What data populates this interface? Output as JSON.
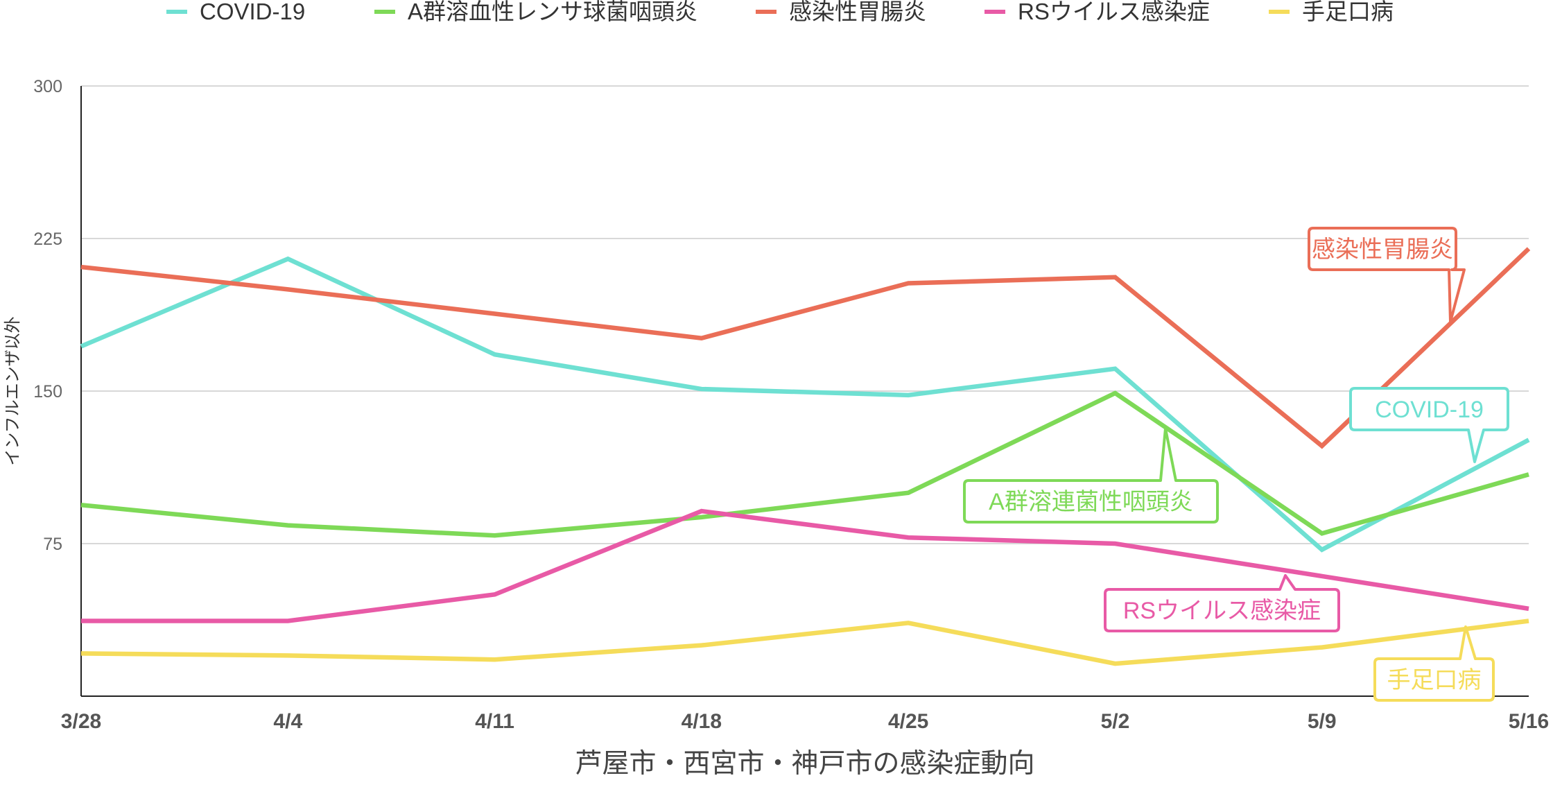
{
  "chart_data": {
    "type": "line",
    "title": "",
    "xlabel": "芦屋市・西宮市・神戸市の感染症動向",
    "ylabel": "インフルエンザ以外",
    "categories": [
      "3/28",
      "4/4",
      "4/11",
      "4/18",
      "4/25",
      "5/2",
      "5/9",
      "5/16"
    ],
    "ylim": [
      0,
      300
    ],
    "yticks": [
      75,
      150,
      225,
      300
    ],
    "grid": true,
    "legend_position": "top",
    "series": [
      {
        "name": "COVID-19",
        "color": "#6ee0d2",
        "values": [
          172,
          215,
          168,
          151,
          148,
          161,
          72,
          126
        ]
      },
      {
        "name": "A群溶血性レンサ球菌咽頭炎",
        "color": "#7ed957",
        "values": [
          94,
          84,
          79,
          88,
          100,
          149,
          80,
          109
        ]
      },
      {
        "name": "感染性胃腸炎",
        "color": "#ea6e57",
        "values": [
          211,
          200,
          188,
          176,
          203,
          206,
          123,
          220
        ]
      },
      {
        "name": "RSウイルス感染症",
        "color": "#e85aa6",
        "values": [
          37,
          37,
          50,
          91,
          78,
          75,
          59,
          43
        ]
      },
      {
        "name": "手足口病",
        "color": "#f5dc5a",
        "values": [
          21,
          20,
          18,
          25,
          36,
          16,
          24,
          37
        ]
      }
    ],
    "annotations": [
      {
        "text": "感染性胃腸炎",
        "series": 2,
        "color": "#ea6e57"
      },
      {
        "text": "COVID-19",
        "series": 0,
        "color": "#6ee0d2"
      },
      {
        "text": "A群溶連菌性咽頭炎",
        "series": 1,
        "color": "#7ed957"
      },
      {
        "text": "RSウイルス感染症",
        "series": 3,
        "color": "#e85aa6"
      },
      {
        "text": "手足口病",
        "series": 4,
        "color": "#f5dc5a"
      }
    ]
  }
}
